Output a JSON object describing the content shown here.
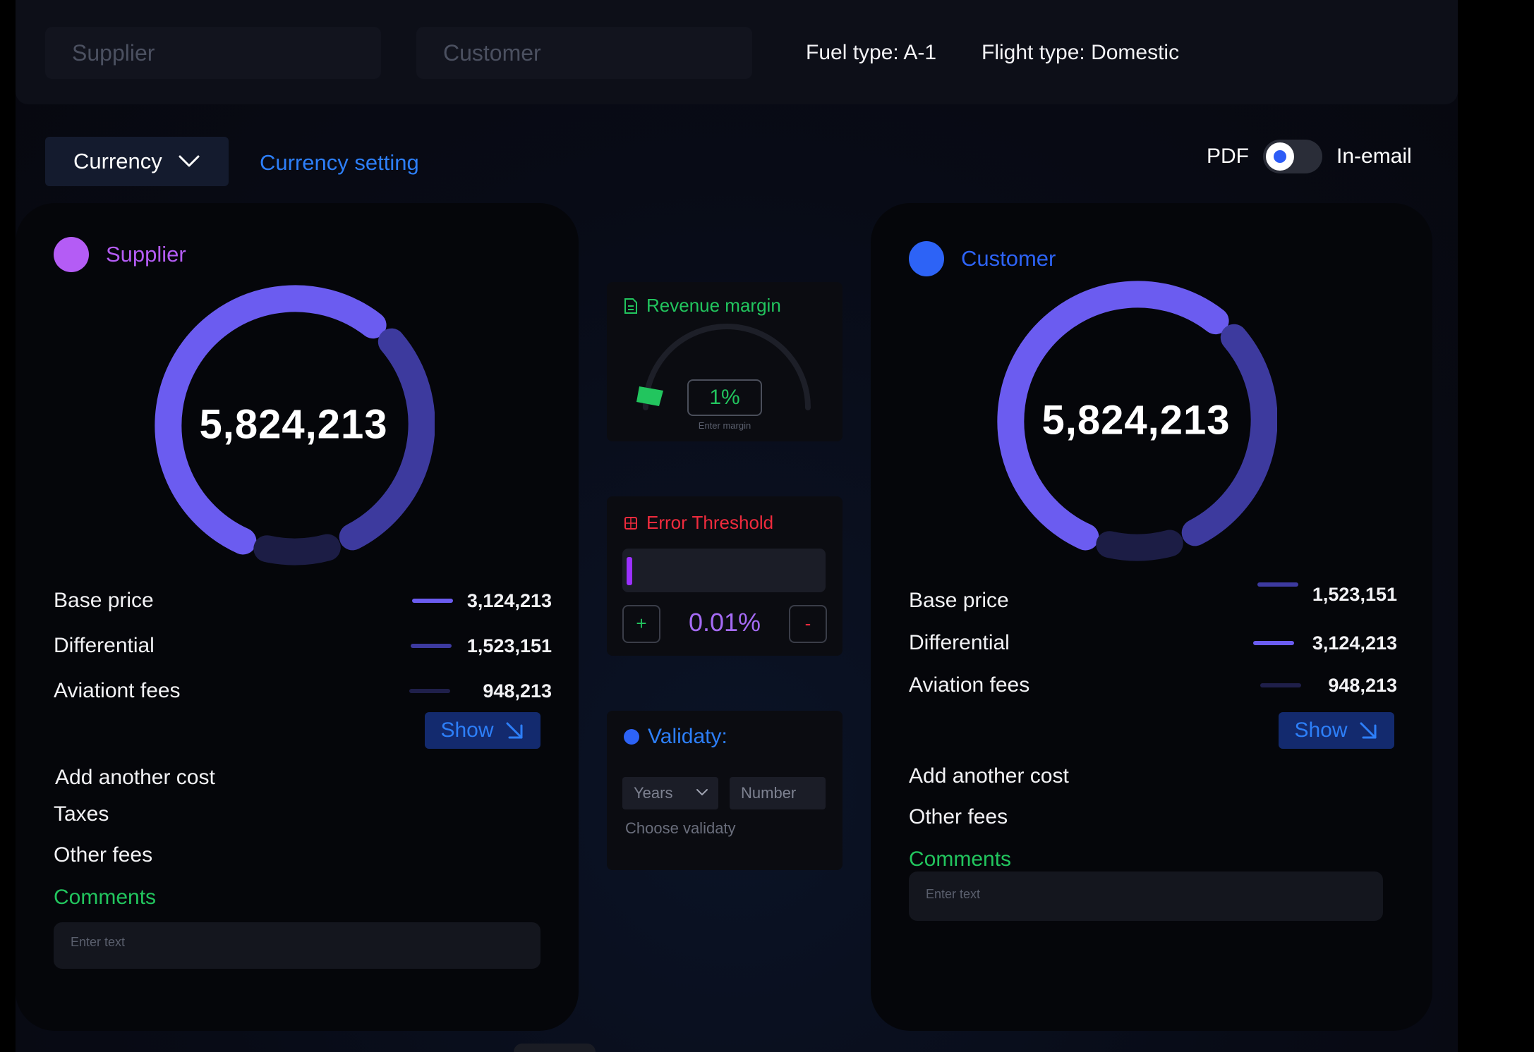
{
  "topbar": {
    "supplier_placeholder": "Supplier",
    "customer_placeholder": "Customer",
    "fuel_type": "Fuel type: A-1",
    "flight_type": "Flight type: Domestic"
  },
  "toolbar": {
    "currency_label": "Currency",
    "currency_setting": "Currency setting",
    "pdf_label": "PDF",
    "inemail_label": "In-email"
  },
  "supplier": {
    "title": "Supplier",
    "dot_color": "#b45cf5",
    "total": "5,824,213",
    "rows": [
      {
        "label": "Base price",
        "value": "3,124,213",
        "bar_color": "#6b5cf0"
      },
      {
        "label": "Differential",
        "value": "1,523,151",
        "bar_color": "#3d3aa0"
      },
      {
        "label": "Aviationt fees",
        "value": "948,213",
        "bar_color": "#1f1f4a"
      }
    ],
    "show_label": "Show",
    "add_cost": "Add another cost",
    "taxes": "Taxes",
    "other_fees": "Other fees",
    "comments": "Comments",
    "comment_placeholder": "Enter text"
  },
  "customer": {
    "title": "Customer",
    "dot_color": "#2d63f6",
    "total": "5,824,213",
    "rows": [
      {
        "label": "Base price",
        "value": "1,523,151",
        "bar_color": "#3d3aa0"
      },
      {
        "label": "Differential",
        "value": "3,124,213",
        "bar_color": "#6b5cf0"
      },
      {
        "label": "Aviation fees",
        "value": "948,213",
        "bar_color": "#1f1f4a"
      }
    ],
    "show_label": "Show",
    "add_cost": "Add another cost",
    "other_fees": "Other fees",
    "comments": "Comments",
    "comment_placeholder": "Enter text"
  },
  "revenue_margin": {
    "title": "Revenue margin",
    "value": "1%",
    "hint": "Enter margin"
  },
  "error_threshold": {
    "title": "Error Threshold",
    "value": "0.01%",
    "plus": "+",
    "minus": "-"
  },
  "validity": {
    "title": "Validaty:",
    "unit_select": "Years",
    "number_placeholder": "Number",
    "hint": "Choose validaty"
  },
  "colors": {
    "accent_blue": "#2d7ff9",
    "green": "#22c55e",
    "red": "#ef2b3d",
    "purple": "#a56bf5"
  }
}
